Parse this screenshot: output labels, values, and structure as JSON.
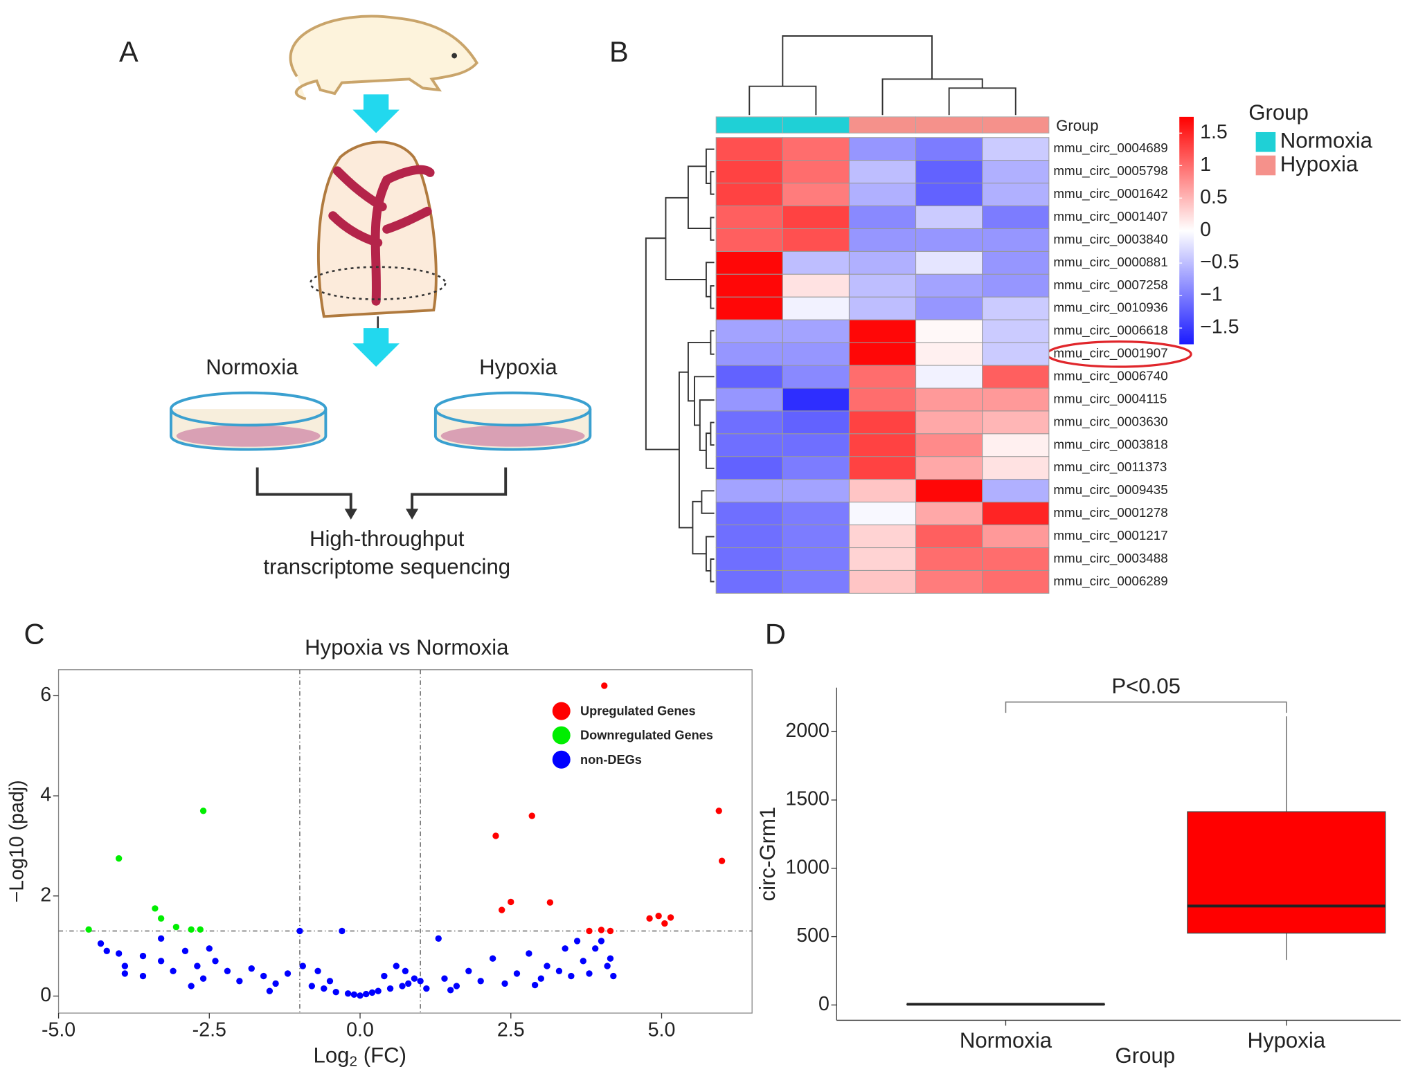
{
  "panels": [
    "A",
    "B",
    "C",
    "D"
  ],
  "diagram": {
    "left_label": "Normoxia",
    "right_label": "Hypoxia",
    "output_lines": [
      "High-throughput",
      "transcriptome sequencing"
    ]
  },
  "chart_data": [
    {
      "type": "heatmap",
      "rows": [
        "mmu_circ_0004689",
        "mmu_circ_0005798",
        "mmu_circ_0001642",
        "mmu_circ_0001407",
        "mmu_circ_0003840",
        "mmu_circ_0000881",
        "mmu_circ_0007258",
        "mmu_circ_0010936",
        "mmu_circ_0006618",
        "mmu_circ_0001907",
        "mmu_circ_0006740",
        "mmu_circ_0004115",
        "mmu_circ_0003630",
        "mmu_circ_0003818",
        "mmu_circ_0011373",
        "mmu_circ_0009435",
        "mmu_circ_0001278",
        "mmu_circ_0001217",
        "mmu_circ_0003488",
        "mmu_circ_0006289"
      ],
      "values": [
        [
          1.2,
          1.0,
          -0.8,
          -1.0,
          -0.4
        ],
        [
          1.3,
          1.0,
          -0.5,
          -1.2,
          -0.6
        ],
        [
          1.3,
          0.9,
          -0.6,
          -1.2,
          -0.6
        ],
        [
          1.1,
          1.3,
          -0.9,
          -0.4,
          -1.0
        ],
        [
          1.1,
          1.2,
          -0.8,
          -0.8,
          -0.8
        ],
        [
          1.7,
          -0.5,
          -0.6,
          -0.2,
          -0.8
        ],
        [
          1.7,
          0.2,
          -0.5,
          -0.7,
          -0.8
        ],
        [
          1.7,
          -0.1,
          -0.5,
          -0.8,
          -0.4
        ],
        [
          -0.7,
          -0.7,
          1.7,
          0.05,
          -0.4
        ],
        [
          -0.8,
          -0.8,
          1.7,
          0.1,
          -0.4
        ],
        [
          -1.2,
          -0.9,
          1.0,
          -0.1,
          1.1
        ],
        [
          -0.8,
          -1.6,
          1.0,
          0.7,
          0.7
        ],
        [
          -1.1,
          -1.2,
          1.3,
          0.6,
          0.5
        ],
        [
          -1.1,
          -1.1,
          1.3,
          0.8,
          0.1
        ],
        [
          -1.2,
          -1.0,
          1.3,
          0.6,
          0.2
        ],
        [
          -0.7,
          -0.7,
          0.4,
          1.7,
          -0.6
        ],
        [
          -1.1,
          -1.0,
          -0.05,
          0.6,
          1.5
        ],
        [
          -1.1,
          -1.0,
          0.3,
          1.1,
          0.7
        ],
        [
          -1.1,
          -1.0,
          0.3,
          1.0,
          1.0
        ],
        [
          -1.1,
          -1.0,
          0.4,
          0.9,
          1.0
        ]
      ],
      "clim": [
        -1.75,
        1.75
      ],
      "colorbar_ticks": [
        1.5,
        1,
        0.5,
        0,
        {
          "value": -0.5,
          "label": "−0.5"
        },
        {
          "value": -1,
          "label": "−1"
        },
        {
          "value": -1.5,
          "label": "−1.5"
        }
      ],
      "colors": [
        "#1a1aff",
        "#ffffff",
        "#ff0000"
      ],
      "column_groups": [
        0,
        0,
        1,
        1,
        1
      ],
      "groups": [
        {
          "name": "Normoxia",
          "color": "#1fd0d6"
        },
        {
          "name": "Hypoxia",
          "color": "#f5918b"
        }
      ],
      "group_row_label": "Group",
      "legend_title": "Group"
    },
    {
      "type": "scatter",
      "title": "Hypoxia vs Normoxia",
      "xlabel": {
        "base": "Log",
        "sub": "2",
        "rest": " (FC)"
      },
      "ylabel": "−Log10 (padj)",
      "xlim": [
        -5.0,
        6.5
      ],
      "ylim": [
        -0.34,
        6.52
      ],
      "xticks": [
        {
          "value": -5,
          "label": "-5.0"
        },
        -2.5,
        {
          "value": 0,
          "label": "0.0"
        },
        2.5,
        {
          "value": 5,
          "label": "5.0"
        }
      ],
      "yticks": [
        0,
        2,
        4,
        6
      ],
      "thresholds": {
        "x": [
          -1,
          1
        ],
        "y": 1.3
      },
      "series": [
        {
          "name": "Upregulated Genes",
          "color": "#ff0000",
          "x": [
            4.05,
            5.95,
            6.0,
            2.85,
            2.25,
            2.5,
            2.35,
            3.15,
            4.8,
            4.95,
            5.05,
            5.15,
            3.8,
            4.0,
            4.15
          ],
          "values": [
            6.2,
            3.7,
            2.7,
            3.6,
            3.2,
            1.88,
            1.72,
            1.87,
            1.55,
            1.6,
            1.45,
            1.57,
            1.3,
            1.32,
            1.3
          ]
        },
        {
          "name": "Downregulated Genes",
          "color": "#00ee00",
          "x": [
            -2.6,
            -4.0,
            -3.4,
            -3.3,
            -3.05,
            -2.8,
            -2.65,
            -4.5
          ],
          "values": [
            3.7,
            2.75,
            1.75,
            1.55,
            1.38,
            1.33,
            1.33,
            1.33
          ]
        },
        {
          "name": "non-DEGs",
          "color": "#0000ff",
          "x": [
            -4.3,
            -4.2,
            -4.0,
            -3.9,
            -3.9,
            -3.6,
            -3.6,
            -3.3,
            -3.3,
            -3.1,
            -2.9,
            -2.7,
            -2.6,
            -2.5,
            -2.4,
            -2.2,
            -2.0,
            -1.8,
            -1.6,
            -1.4,
            -1.2,
            -1.0,
            -0.95,
            -0.8,
            -0.6,
            -0.5,
            -0.4,
            -0.3,
            -0.2,
            -0.1,
            0,
            0.1,
            0.2,
            0.3,
            0.4,
            0.5,
            0.6,
            0.7,
            0.8,
            0.9,
            1.0,
            1.1,
            1.3,
            1.4,
            1.6,
            1.8,
            2.0,
            2.2,
            2.4,
            2.6,
            2.8,
            3.0,
            3.1,
            3.3,
            3.4,
            3.5,
            3.6,
            3.7,
            3.8,
            3.9,
            4.0,
            4.1,
            4.15,
            4.2,
            -1.5,
            1.5,
            -2.8,
            2.9,
            -0.7,
            0.75
          ],
          "values": [
            1.05,
            0.9,
            0.85,
            0.6,
            0.45,
            0.8,
            0.4,
            1.15,
            0.7,
            0.5,
            0.9,
            0.6,
            0.35,
            0.95,
            0.7,
            0.5,
            0.3,
            0.55,
            0.4,
            0.25,
            0.45,
            1.3,
            0.6,
            0.2,
            0.15,
            0.3,
            0.08,
            1.3,
            0.05,
            0.03,
            0.01,
            0.04,
            0.07,
            0.1,
            0.4,
            0.15,
            0.6,
            0.2,
            0.25,
            0.35,
            0.3,
            0.15,
            1.15,
            0.35,
            0.2,
            0.5,
            0.3,
            0.75,
            0.25,
            0.45,
            0.85,
            0.35,
            0.6,
            0.5,
            0.95,
            0.4,
            1.1,
            0.7,
            0.45,
            0.95,
            1.1,
            0.6,
            0.75,
            0.4,
            0.1,
            0.12,
            0.2,
            0.22,
            0.5,
            0.5
          ]
        }
      ]
    },
    {
      "type": "box",
      "xlabel": "Group",
      "ylabel": "circ-Grm1",
      "categories": [
        "Normoxia",
        "Hypoxia"
      ],
      "boxes": [
        {
          "min": 5,
          "q1": 5,
          "median": 5,
          "q3": 5,
          "max": 5
        },
        {
          "min": 330,
          "q1": 526,
          "median": 724,
          "q3": 1414,
          "max": 2112
        }
      ],
      "color": "#ff0000",
      "ylim": [
        -112,
        2322
      ],
      "yticks": [
        0,
        500,
        1000,
        1500,
        2000
      ],
      "annotation": "P<0.05"
    }
  ]
}
